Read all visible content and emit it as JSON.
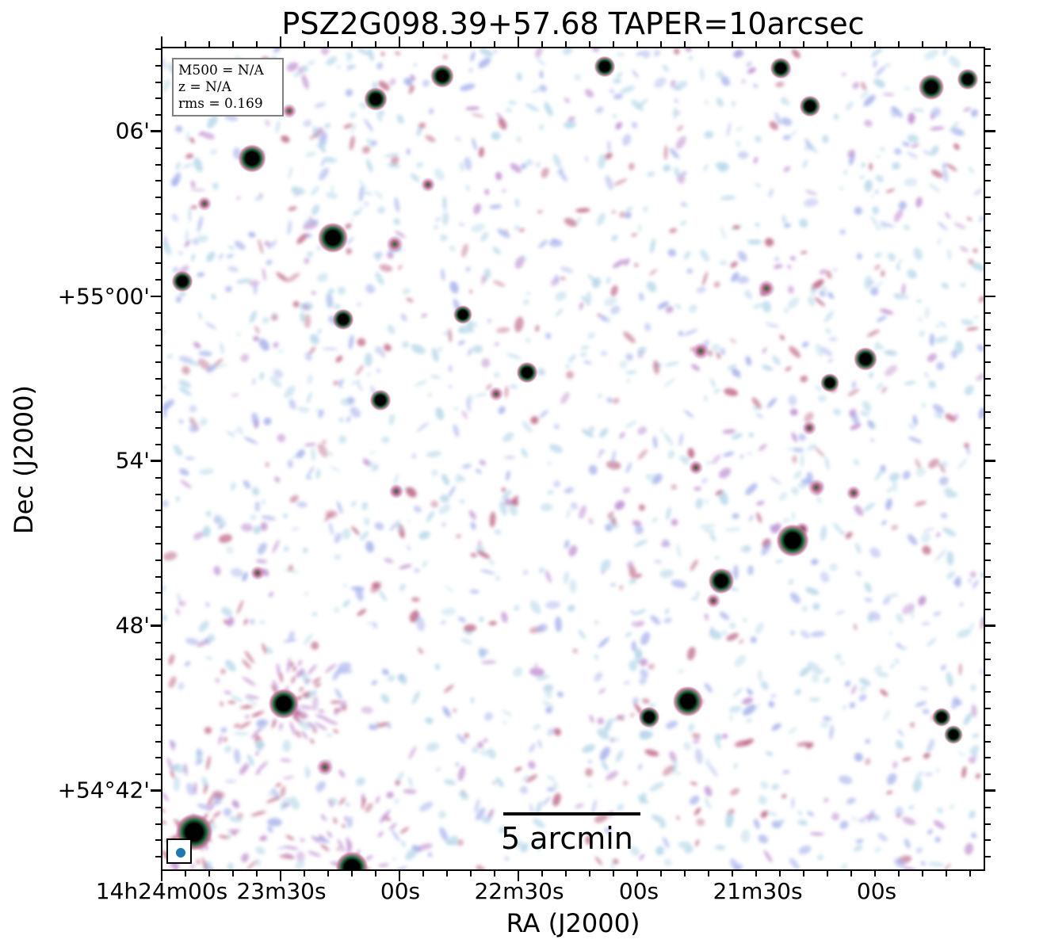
{
  "title": "PSZ2G098.39+57.68 TAPER=10arcsec",
  "xlabel": "RA (J2000)",
  "ylabel": "Dec (J2000)",
  "x_ticks": [
    "14h24m00s",
    "23m30s",
    "00s",
    "22m30s",
    "00s",
    "21m30s",
    "00s"
  ],
  "y_ticks": [
    "06'",
    "+55°00'",
    "54'",
    "48'",
    "+54°42'"
  ],
  "info": {
    "mass": "M500 = N/A",
    "redshift": "z = N/A",
    "rms": "rms = 0.169"
  },
  "scalebar": {
    "label": "5 arcmin"
  },
  "colors": {
    "noise_light": "#b9d9ea",
    "noise_mid": "#a9b3ec",
    "noise_purple": "#c08fd0",
    "noise_red": "#c06a8a",
    "source_green": "#1f6b3f",
    "source_core": "#000000",
    "beam": "#1f77b4"
  }
}
